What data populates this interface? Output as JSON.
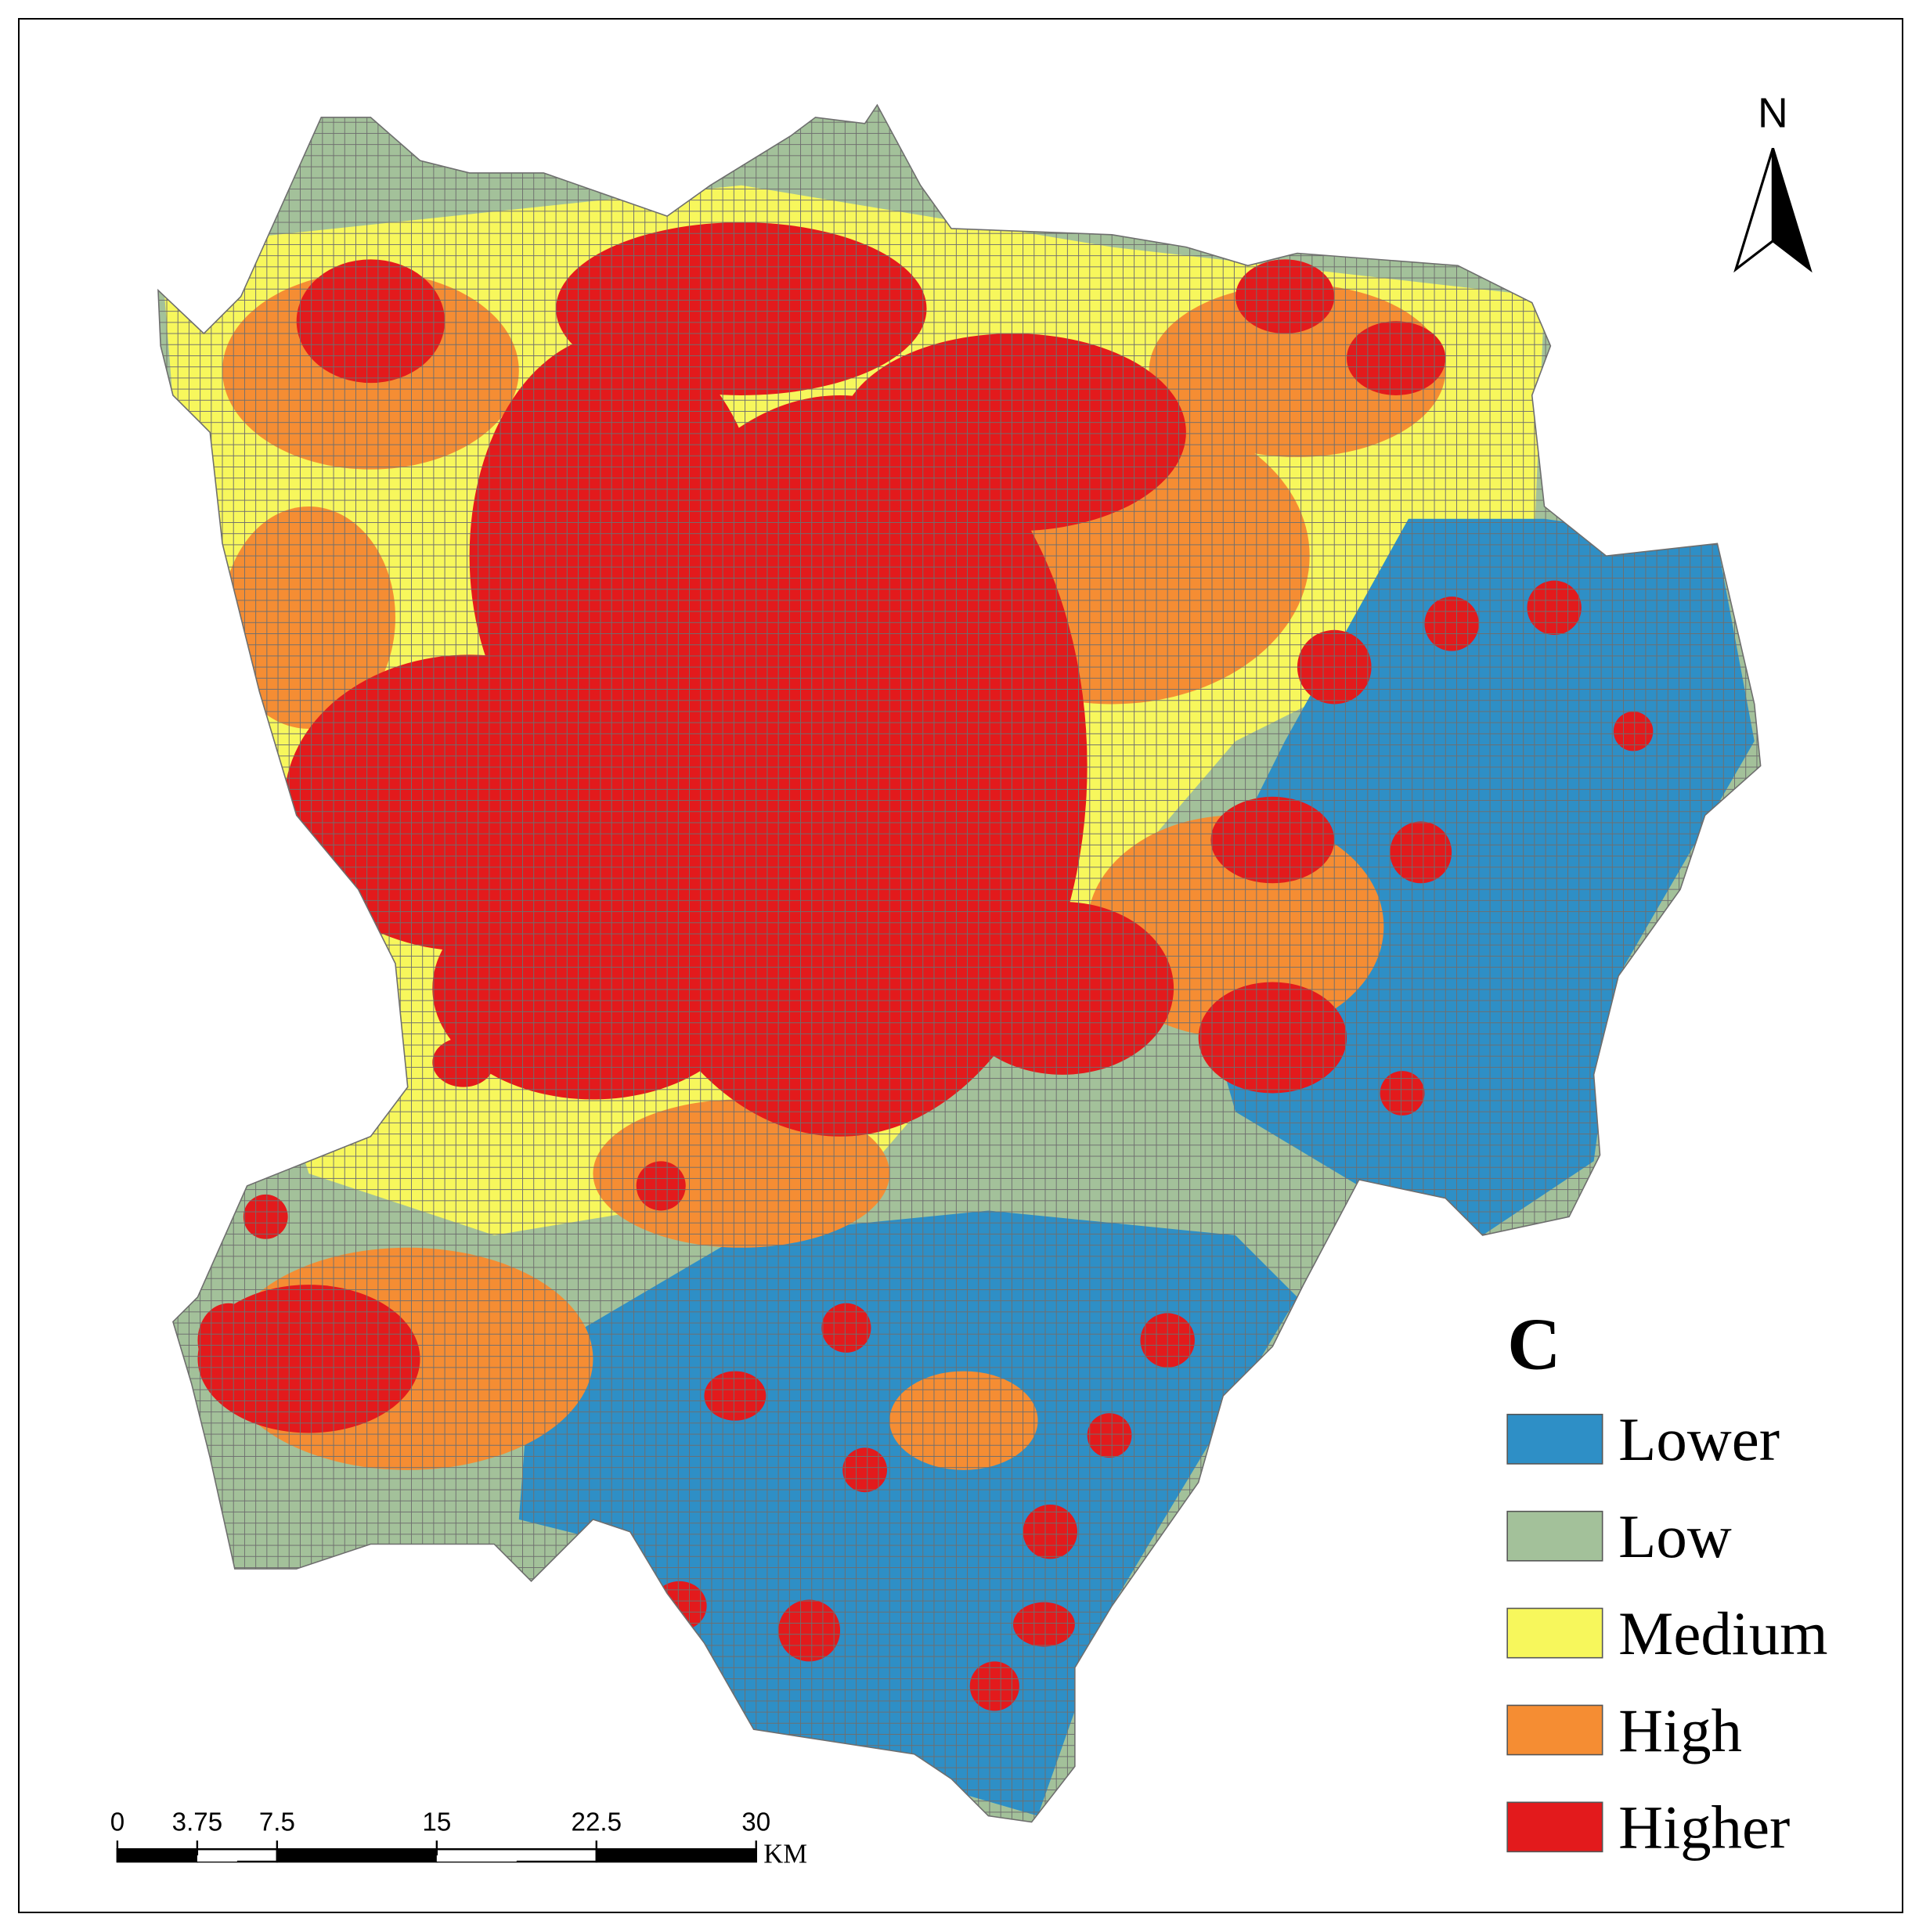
{
  "map_data": {
    "panel_label": "C",
    "north_label": "N",
    "legend": [
      {
        "name": "Lower",
        "color": "#2e8fc6"
      },
      {
        "name": "Low",
        "color": "#a3c19a"
      },
      {
        "name": "Medium",
        "color": "#f7f75c"
      },
      {
        "name": "High",
        "color": "#f58d33"
      },
      {
        "name": "Higher",
        "color": "#e31a1c"
      }
    ],
    "scale_bar": {
      "ticks": [
        0,
        3.75,
        7.5,
        15,
        22.5,
        30
      ],
      "unit": "KM"
    }
  }
}
